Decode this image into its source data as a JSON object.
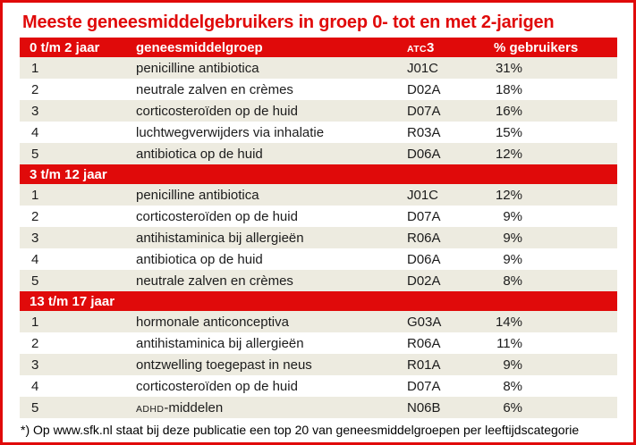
{
  "chart_data": {
    "type": "table",
    "title": "Meeste geneesmiddelgebruikers in groep 0- tot en met 2-jarigen",
    "columns": {
      "group_label": "geneesmiddelgroep",
      "atc_smallcaps": "ATC",
      "atc_number": "3",
      "users_label": "% gebruikers"
    },
    "sections": [
      {
        "age_group": "0 t/m 2 jaar",
        "rows": [
          {
            "rank": "1",
            "name": "penicilline antibiotica",
            "atc": "J01C",
            "pct": "31%"
          },
          {
            "rank": "2",
            "name": "neutrale zalven en crèmes",
            "atc": "D02A",
            "pct": "18%"
          },
          {
            "rank": "3",
            "name": "corticosteroïden op de huid",
            "atc": "D07A",
            "pct": "16%"
          },
          {
            "rank": "4",
            "name": "luchtwegverwijders via inhalatie",
            "atc": "R03A",
            "pct": "15%"
          },
          {
            "rank": "5",
            "name": "antibiotica op de huid",
            "atc": "D06A",
            "pct": "12%"
          }
        ]
      },
      {
        "age_group": "3 t/m 12 jaar",
        "rows": [
          {
            "rank": "1",
            "name": "penicilline antibiotica",
            "atc": "J01C",
            "pct": "12%"
          },
          {
            "rank": "2",
            "name": "corticosteroïden op de huid",
            "atc": "D07A",
            "pct": "9%"
          },
          {
            "rank": "3",
            "name": "antihistaminica bij allergieën",
            "atc": "R06A",
            "pct": "9%"
          },
          {
            "rank": "4",
            "name": "antibiotica op de huid",
            "atc": "D06A",
            "pct": "9%"
          },
          {
            "rank": "5",
            "name": "neutrale zalven en crèmes",
            "atc": "D02A",
            "pct": "8%"
          }
        ]
      },
      {
        "age_group": "13 t/m 17 jaar",
        "rows": [
          {
            "rank": "1",
            "name": "hormonale anticonceptiva",
            "atc": "G03A",
            "pct": "14%"
          },
          {
            "rank": "2",
            "name": "antihistaminica bij allergieën",
            "atc": "R06A",
            "pct": "11%"
          },
          {
            "rank": "3",
            "name": "ontzwelling toegepast in neus",
            "atc": "R01A",
            "pct": "9%"
          },
          {
            "rank": "4",
            "name": "corticosteroïden op de huid",
            "atc": "D07A",
            "pct": "8%"
          },
          {
            "rank": "5",
            "name_smallcaps": "ADHD",
            "name": "-middelen",
            "atc": "N06B",
            "pct": "6%"
          }
        ]
      }
    ],
    "footnote": "*) Op www.sfk.nl staat bij deze publicatie een top 20 van geneesmiddelgroepen per leeftijdscategorie"
  },
  "colors": {
    "accent_red": "#e00a0a",
    "row_shade": "#edebe0",
    "text": "#1c1c1c",
    "header_text": "#ffffff",
    "background": "#ffffff"
  }
}
